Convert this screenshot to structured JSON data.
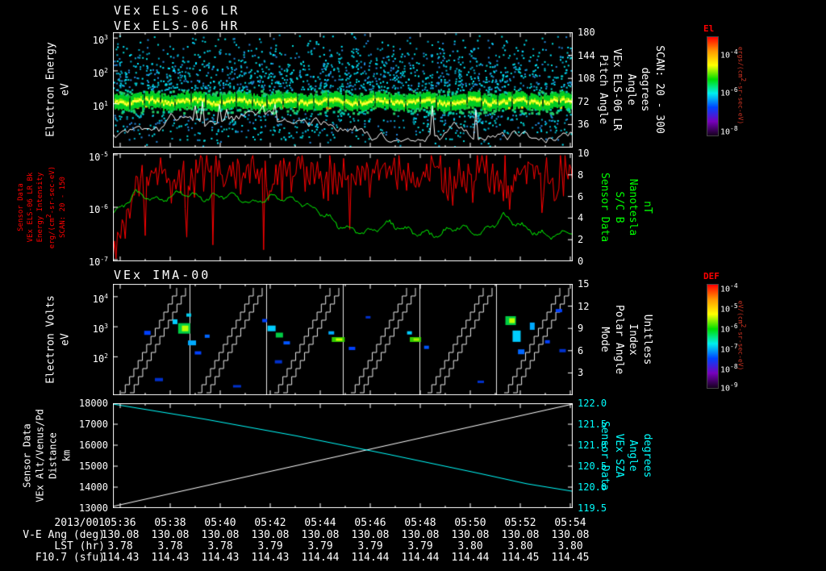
{
  "header": {
    "title_lr": "VEx ELS-06 LR",
    "title_hr": "VEx ELS-06 HR",
    "ima_title": "VEx IMA-00"
  },
  "colors": {
    "background": "#000000",
    "axis": "#ffffff",
    "red_series": "#ff0000",
    "green_series": "#00ff00",
    "cyan_series": "#00ffff",
    "white_series": "#ffffff"
  },
  "panels": {
    "els": {
      "left_label_lines": [
        "Electron Energy",
        "eV"
      ],
      "left_ticks": [
        {
          "label": "10^3",
          "pos": 0.05
        },
        {
          "label": "10^2",
          "pos": 0.335
        },
        {
          "label": "10^1",
          "pos": 0.62
        }
      ],
      "right_label_lines": [
        "Pitch Angle",
        "VEx ELS-06 LR",
        "Angle",
        "degrees",
        "SCAN: 20 - 300"
      ],
      "right_ticks": [
        {
          "label": "180",
          "pos": 0.0
        },
        {
          "label": "144",
          "pos": 0.2
        },
        {
          "label": "108",
          "pos": 0.4
        },
        {
          "label": "72",
          "pos": 0.6
        },
        {
          "label": "36",
          "pos": 0.8
        }
      ]
    },
    "bfield": {
      "left_label_lines": [
        "Sensor Data",
        "VEx ELS-06 LR Bk",
        "Energy Intensity",
        "erg/(cm2-sr-sec-eV)",
        "SCAN: 20 - 150"
      ],
      "left_ticks": [
        {
          "label": "10^-5",
          "pos": 0.015
        },
        {
          "label": "10^-6",
          "pos": 0.5
        },
        {
          "label": "10^-7",
          "pos": 0.985
        }
      ],
      "right_label_lines": [
        "Sensor Data",
        "S/C B",
        "Nanotesla",
        "nT"
      ],
      "right_ticks": [
        {
          "label": "10",
          "pos": 0.0
        },
        {
          "label": "8",
          "pos": 0.2
        },
        {
          "label": "6",
          "pos": 0.4
        },
        {
          "label": "4",
          "pos": 0.6
        },
        {
          "label": "2",
          "pos": 0.8
        },
        {
          "label": "0",
          "pos": 1.0
        }
      ]
    },
    "ima": {
      "left_label_lines": [
        "Electron Volts",
        "eV"
      ],
      "left_ticks": [
        {
          "label": "10^4",
          "pos": 0.115
        },
        {
          "label": "10^3",
          "pos": 0.385
        },
        {
          "label": "10^2",
          "pos": 0.655
        }
      ],
      "right_label_lines": [
        "Mode",
        "Polar Angle",
        "Index",
        "Unitless"
      ],
      "right_ticks": [
        {
          "label": "15",
          "pos": 0.0
        },
        {
          "label": "12",
          "pos": 0.2
        },
        {
          "label": "9",
          "pos": 0.4
        },
        {
          "label": "6",
          "pos": 0.6
        },
        {
          "label": "3",
          "pos": 0.8
        }
      ]
    },
    "ephemeris": {
      "left_label_lines": [
        "Sensor Data",
        "VEx Alt/Venus/Pd",
        "Distance",
        "km"
      ],
      "left_ticks": [
        {
          "label": "18000",
          "pos": 0.0
        },
        {
          "label": "17000",
          "pos": 0.2
        },
        {
          "label": "16000",
          "pos": 0.4
        },
        {
          "label": "15000",
          "pos": 0.6
        },
        {
          "label": "14000",
          "pos": 0.8
        },
        {
          "label": "13000",
          "pos": 1.0
        }
      ],
      "right_label_lines": [
        "Sensor Data",
        "VEx SZA",
        "Angle",
        "degrees"
      ],
      "right_ticks": [
        {
          "label": "122.0",
          "pos": 0.0
        },
        {
          "label": "121.5",
          "pos": 0.2
        },
        {
          "label": "121.0",
          "pos": 0.4
        },
        {
          "label": "120.5",
          "pos": 0.6
        },
        {
          "label": "120.0",
          "pos": 0.8
        },
        {
          "label": "119.5",
          "pos": 1.0
        }
      ]
    }
  },
  "colorbars": [
    {
      "name": "El",
      "label_color": "#ff0000",
      "unit": "ergs/(cm2-sr-sec-eV)",
      "ticks": [
        {
          "label": "10^-4",
          "pos": 0.17
        },
        {
          "label": "10^-6",
          "pos": 0.56
        },
        {
          "label": "10^-8",
          "pos": 0.95
        }
      ],
      "gradient": [
        "#ff0000",
        "#ff9900",
        "#ffff00",
        "#00dd00",
        "#00eeee",
        "#0044ff",
        "#7700bb",
        "#16001e"
      ]
    },
    {
      "name": "DEF",
      "label_color": "#ff0000",
      "unit": "eV/(cm2-sr-sec-eV)",
      "ticks": [
        {
          "label": "10^-4",
          "pos": 0.03
        },
        {
          "label": "10^-5",
          "pos": 0.225
        },
        {
          "label": "10^-6",
          "pos": 0.42
        },
        {
          "label": "10^-7",
          "pos": 0.615
        },
        {
          "label": "10^-8",
          "pos": 0.81
        },
        {
          "label": "10^-9",
          "pos": 0.99
        }
      ],
      "gradient": [
        "#ff0000",
        "#ff9900",
        "#ffff00",
        "#00dd00",
        "#00eeee",
        "#0044ff",
        "#7700bb",
        "#16001e"
      ]
    }
  ],
  "time_axis": {
    "date": "2013/001",
    "ticks": [
      "05:36",
      "05:38",
      "05:40",
      "05:42",
      "05:44",
      "05:46",
      "05:48",
      "05:50",
      "05:52",
      "05:54"
    ]
  },
  "ephemeris_rows": [
    {
      "label": "V-E Ang (deg)",
      "values": [
        "130.08",
        "130.08",
        "130.08",
        "130.08",
        "130.08",
        "130.08",
        "130.08",
        "130.08",
        "130.08",
        "130.08"
      ]
    },
    {
      "label": "LST (hr)",
      "values": [
        "3.78",
        "3.78",
        "3.78",
        "3.79",
        "3.79",
        "3.79",
        "3.79",
        "3.80",
        "3.80",
        "3.80"
      ]
    },
    {
      "label": "F10.7 (sfu)",
      "values": [
        "114.43",
        "114.43",
        "114.43",
        "114.43",
        "114.44",
        "114.44",
        "114.44",
        "114.44",
        "114.45",
        "114.45"
      ]
    }
  ],
  "chart_data": [
    {
      "type": "heatmap",
      "name": "els_energy_time_spectrogram",
      "title": "VEx ELS-06 LR / VEx ELS-06 HR",
      "ylabel": "Electron Energy (eV)",
      "y_scale": "log",
      "ylim_log10": [
        0,
        3
      ],
      "ytick_labels": [
        "10^3",
        "10^2",
        "10^1"
      ],
      "y2label": "Pitch Angle (degrees), SCAN: 20 - 300",
      "y2lim": [
        0,
        180
      ],
      "y2ticks": [
        180,
        144,
        108,
        72,
        36
      ],
      "x_range_ut": [
        "05:36",
        "05:54"
      ],
      "colorbar": "El, ergs/(cm2-sr-sec-eV), 10^-4 to 10^-8",
      "description": "Dense cyan/blue electron counts at all energies with a bright green-yellow photoelectron band near 10-40 eV across the whole interval; periodic vertical scan striping; white count-rate trace fluctuating below the band.",
      "band_log10_eV": [
        1.0,
        1.6
      ],
      "seed": 20130
    },
    {
      "type": "line",
      "name": "els_intensity_and_magnetic_field",
      "series": [
        {
          "name": "VEx ELS-06 LR Bk Energy Intensity",
          "unit": "erg/(cm2-sr-sec-eV)",
          "color": "#ff0000",
          "axis": "left",
          "y_scale": "log",
          "ylim_log10": [
            -7,
            -5
          ],
          "behavior": "very spiky, mostly between 10^-6 and 10^-5, initial drop to 10^-7",
          "approx_log10_values": [
            -6.9,
            -5.5,
            -5.3,
            -5.6,
            -5.2,
            -5.5,
            -5.3,
            -5.6,
            -5.25,
            -5.5,
            -5.35,
            -5.55,
            -5.2,
            -5.45,
            -5.3,
            -5.6,
            -5.25,
            -5.5,
            -5.3,
            -5.55,
            -5.4
          ]
        },
        {
          "name": "S/C B",
          "unit": "nT",
          "color": "#00ff00",
          "axis": "right",
          "ylim": [
            0,
            10
          ],
          "behavior": "smoother, ~5-6.5 nT early, dropping to ~2-4 nT after mid-interval",
          "approx_values_nT": [
            4.3,
            6.3,
            5.6,
            6.4,
            5.8,
            6.2,
            5.4,
            6.0,
            5.6,
            4.6,
            3.1,
            2.6,
            3.5,
            2.7,
            2.4,
            3.2,
            2.5,
            4.2,
            3.0,
            2.3,
            2.8
          ]
        }
      ],
      "seed": 77
    },
    {
      "type": "heatmap",
      "name": "ima_spectrogram",
      "title": "VEx IMA-00",
      "ylabel": "Electron Volts (eV)",
      "y_scale": "log",
      "ytick_labels": [
        "10^4",
        "10^3",
        "10^2"
      ],
      "y2label": "Mode / Polar Angle Index (Unitless)",
      "y2lim": [
        0,
        15
      ],
      "y2ticks": [
        15,
        12,
        9,
        6,
        3
      ],
      "colorbar": "DEF, eV/(cm2-sr-sec-eV), 10^-4 to 10^-9",
      "segments": 6,
      "description": "Six elevation-scan segments separated by vertical white lines, each with stepped white staircase traces; sporadic ion flux patches in blue/cyan/green/yellow.",
      "blobs": [
        {
          "x": 0.075,
          "y": 0.44,
          "w": 8,
          "h": 5,
          "c": "#0040ff"
        },
        {
          "x": 0.1,
          "y": 0.86,
          "w": 10,
          "h": 4,
          "c": "#0030cc"
        },
        {
          "x": 0.135,
          "y": 0.34,
          "w": 6,
          "h": 6,
          "c": "#00ccff"
        },
        {
          "x": 0.155,
          "y": 0.4,
          "w": 15,
          "h": 13,
          "c": "#00cc44"
        },
        {
          "x": 0.157,
          "y": 0.4,
          "w": 8,
          "h": 7,
          "c": "#bbff00"
        },
        {
          "x": 0.172,
          "y": 0.53,
          "w": 10,
          "h": 6,
          "c": "#00aaff"
        },
        {
          "x": 0.185,
          "y": 0.62,
          "w": 8,
          "h": 4,
          "c": "#0040ff"
        },
        {
          "x": 0.205,
          "y": 0.47,
          "w": 6,
          "h": 4,
          "c": "#0066ff"
        },
        {
          "x": 0.165,
          "y": 0.28,
          "w": 6,
          "h": 4,
          "c": "#00ccee"
        },
        {
          "x": 0.27,
          "y": 0.92,
          "w": 10,
          "h": 3,
          "c": "#0030cc"
        },
        {
          "x": 0.345,
          "y": 0.4,
          "w": 10,
          "h": 7,
          "c": "#00ccff"
        },
        {
          "x": 0.362,
          "y": 0.46,
          "w": 9,
          "h": 6,
          "c": "#00cc44"
        },
        {
          "x": 0.378,
          "y": 0.53,
          "w": 8,
          "h": 4,
          "c": "#0055ff"
        },
        {
          "x": 0.36,
          "y": 0.7,
          "w": 9,
          "h": 4,
          "c": "#0030cc"
        },
        {
          "x": 0.33,
          "y": 0.33,
          "w": 6,
          "h": 4,
          "c": "#0040ff"
        },
        {
          "x": 0.475,
          "y": 0.44,
          "w": 7,
          "h": 4,
          "c": "#00aaff"
        },
        {
          "x": 0.49,
          "y": 0.5,
          "w": 16,
          "h": 6,
          "c": "#33cc00"
        },
        {
          "x": 0.492,
          "y": 0.5,
          "w": 8,
          "h": 3,
          "c": "#ccff00"
        },
        {
          "x": 0.52,
          "y": 0.58,
          "w": 8,
          "h": 4,
          "c": "#0040ff"
        },
        {
          "x": 0.555,
          "y": 0.3,
          "w": 6,
          "h": 3,
          "c": "#0030cc"
        },
        {
          "x": 0.645,
          "y": 0.44,
          "w": 6,
          "h": 4,
          "c": "#00ccff"
        },
        {
          "x": 0.658,
          "y": 0.5,
          "w": 14,
          "h": 6,
          "c": "#33cc00"
        },
        {
          "x": 0.66,
          "y": 0.5,
          "w": 7,
          "h": 3,
          "c": "#aaee00"
        },
        {
          "x": 0.682,
          "y": 0.57,
          "w": 6,
          "h": 4,
          "c": "#0055ff"
        },
        {
          "x": 0.8,
          "y": 0.88,
          "w": 8,
          "h": 3,
          "c": "#0030cc"
        },
        {
          "x": 0.865,
          "y": 0.33,
          "w": 13,
          "h": 11,
          "c": "#00cc44"
        },
        {
          "x": 0.868,
          "y": 0.33,
          "w": 7,
          "h": 6,
          "c": "#bbff00"
        },
        {
          "x": 0.878,
          "y": 0.47,
          "w": 10,
          "h": 14,
          "c": "#00ccff"
        },
        {
          "x": 0.888,
          "y": 0.61,
          "w": 8,
          "h": 6,
          "c": "#0066ff"
        },
        {
          "x": 0.912,
          "y": 0.38,
          "w": 6,
          "h": 9,
          "c": "#00aaff"
        },
        {
          "x": 0.945,
          "y": 0.52,
          "w": 6,
          "h": 4,
          "c": "#0040ff"
        },
        {
          "x": 0.97,
          "y": 0.24,
          "w": 8,
          "h": 4,
          "c": "#0040ff"
        },
        {
          "x": 0.978,
          "y": 0.6,
          "w": 8,
          "h": 4,
          "c": "#0030cc"
        }
      ]
    },
    {
      "type": "line",
      "name": "altitude_and_sza",
      "series": [
        {
          "name": "VEx Alt/Venus/Pd Distance",
          "unit": "km",
          "color": "#ffffff",
          "axis": "left",
          "ylim": [
            13000,
            18000
          ],
          "points": [
            [
              0,
              13080
            ],
            [
              1,
              17960
            ]
          ]
        },
        {
          "name": "VEx SZA",
          "unit": "degrees",
          "color": "#00ffff",
          "axis": "right",
          "ylim": [
            119.5,
            122.0
          ],
          "points": [
            [
              0,
              121.98
            ],
            [
              0.2,
              121.62
            ],
            [
              0.4,
              121.22
            ],
            [
              0.6,
              120.78
            ],
            [
              0.8,
              120.32
            ],
            [
              0.9,
              120.08
            ],
            [
              1,
              119.9
            ]
          ]
        }
      ]
    }
  ]
}
